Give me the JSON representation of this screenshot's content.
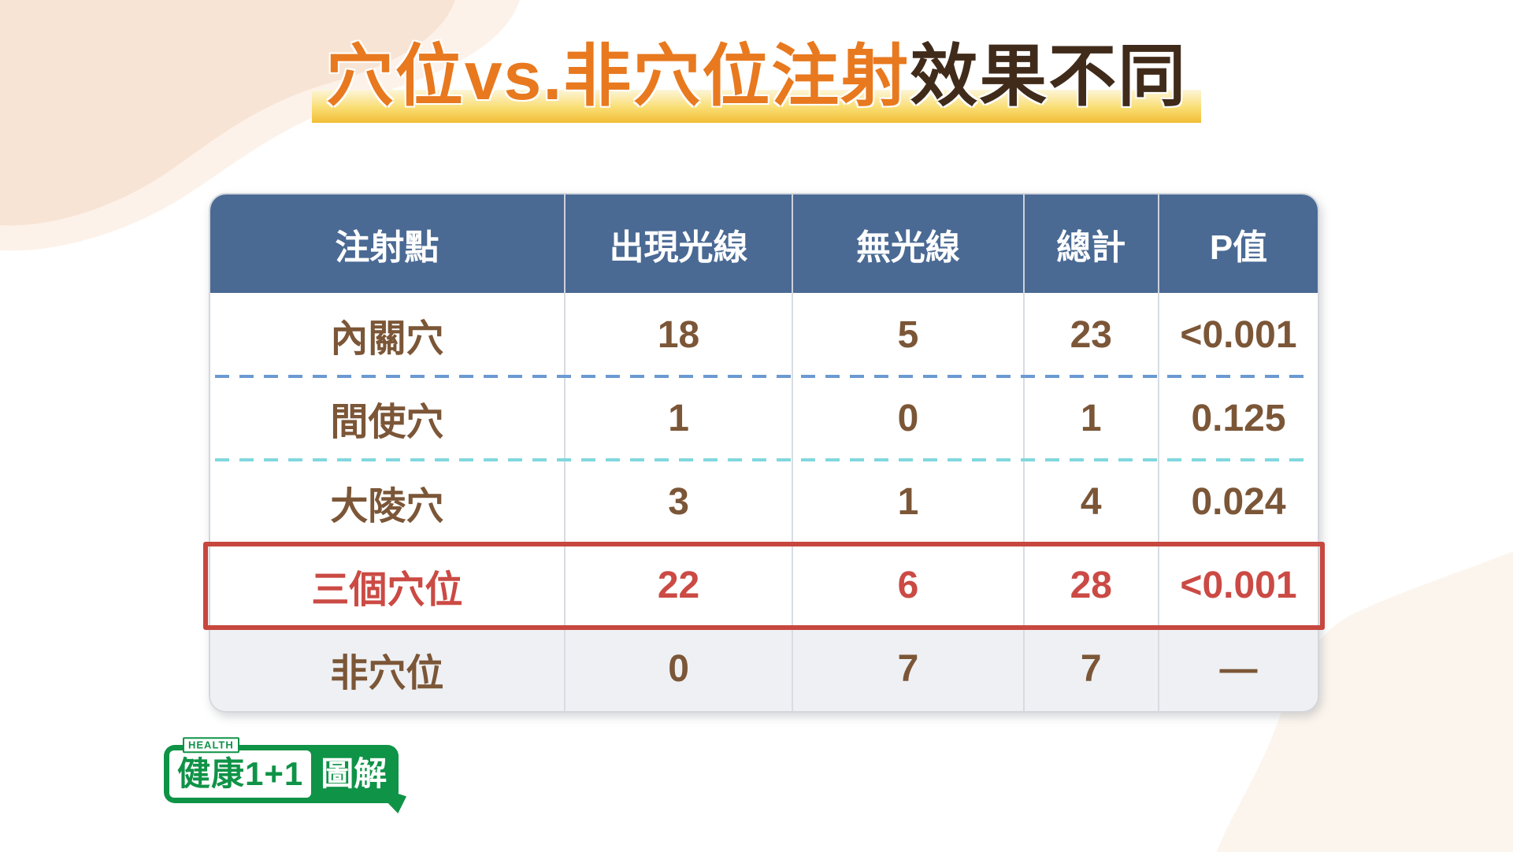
{
  "title": {
    "highlighted_part": "穴位vs.非穴位注射",
    "plain_part": "效果不同"
  },
  "table": {
    "columns": [
      "注射點",
      "出現光線",
      "無光線",
      "總計",
      "P值"
    ],
    "rows": [
      {
        "cells": [
          "內關穴",
          "18",
          "5",
          "23",
          "<0.001"
        ],
        "emphasis": "none",
        "divider_above": "none"
      },
      {
        "cells": [
          "間使穴",
          "1",
          "0",
          "1",
          "0.125"
        ],
        "emphasis": "none",
        "divider_above": "dash-blue"
      },
      {
        "cells": [
          "大陵穴",
          "3",
          "1",
          "4",
          "0.024"
        ],
        "emphasis": "none",
        "divider_above": "dash-cyan"
      },
      {
        "cells": [
          "三個穴位",
          "22",
          "6",
          "28",
          "<0.001"
        ],
        "emphasis": "highlight-red",
        "divider_above": "none"
      },
      {
        "cells": [
          "非穴位",
          "0",
          "7",
          "7",
          "—"
        ],
        "emphasis": "shaded",
        "divider_above": "none"
      }
    ]
  },
  "chart_data": {
    "type": "table",
    "title": "穴位vs.非穴位注射效果不同",
    "columns": [
      "注射點",
      "出現光線",
      "無光線",
      "總計",
      "P值"
    ],
    "rows": [
      [
        "內關穴",
        18,
        5,
        23,
        "<0.001"
      ],
      [
        "間使穴",
        1,
        0,
        1,
        "0.125"
      ],
      [
        "大陵穴",
        3,
        1,
        4,
        "0.024"
      ],
      [
        "三個穴位",
        22,
        6,
        28,
        "<0.001"
      ],
      [
        "非穴位",
        0,
        7,
        7,
        "—"
      ]
    ],
    "highlighted_row": "三個穴位"
  },
  "logo": {
    "top_label": "HEALTH",
    "brand": "健康1+1",
    "tag": "圖解"
  },
  "colors": {
    "header_bg": "#4a6a94",
    "body_text_brown": "#7b5637",
    "accent_red": "#c7473f",
    "title_orange": "#e8791f",
    "title_dark_brown": "#402b1b",
    "highlight_gold": "#f1bd37",
    "dash_blue": "#6b9ad2",
    "dash_cyan": "#80d7de",
    "shaded_row_bg": "#eef0f3",
    "logo_green": "#0f9347",
    "blob_peach": "#f8e4d5",
    "blob_cream": "#fcf5ee"
  }
}
